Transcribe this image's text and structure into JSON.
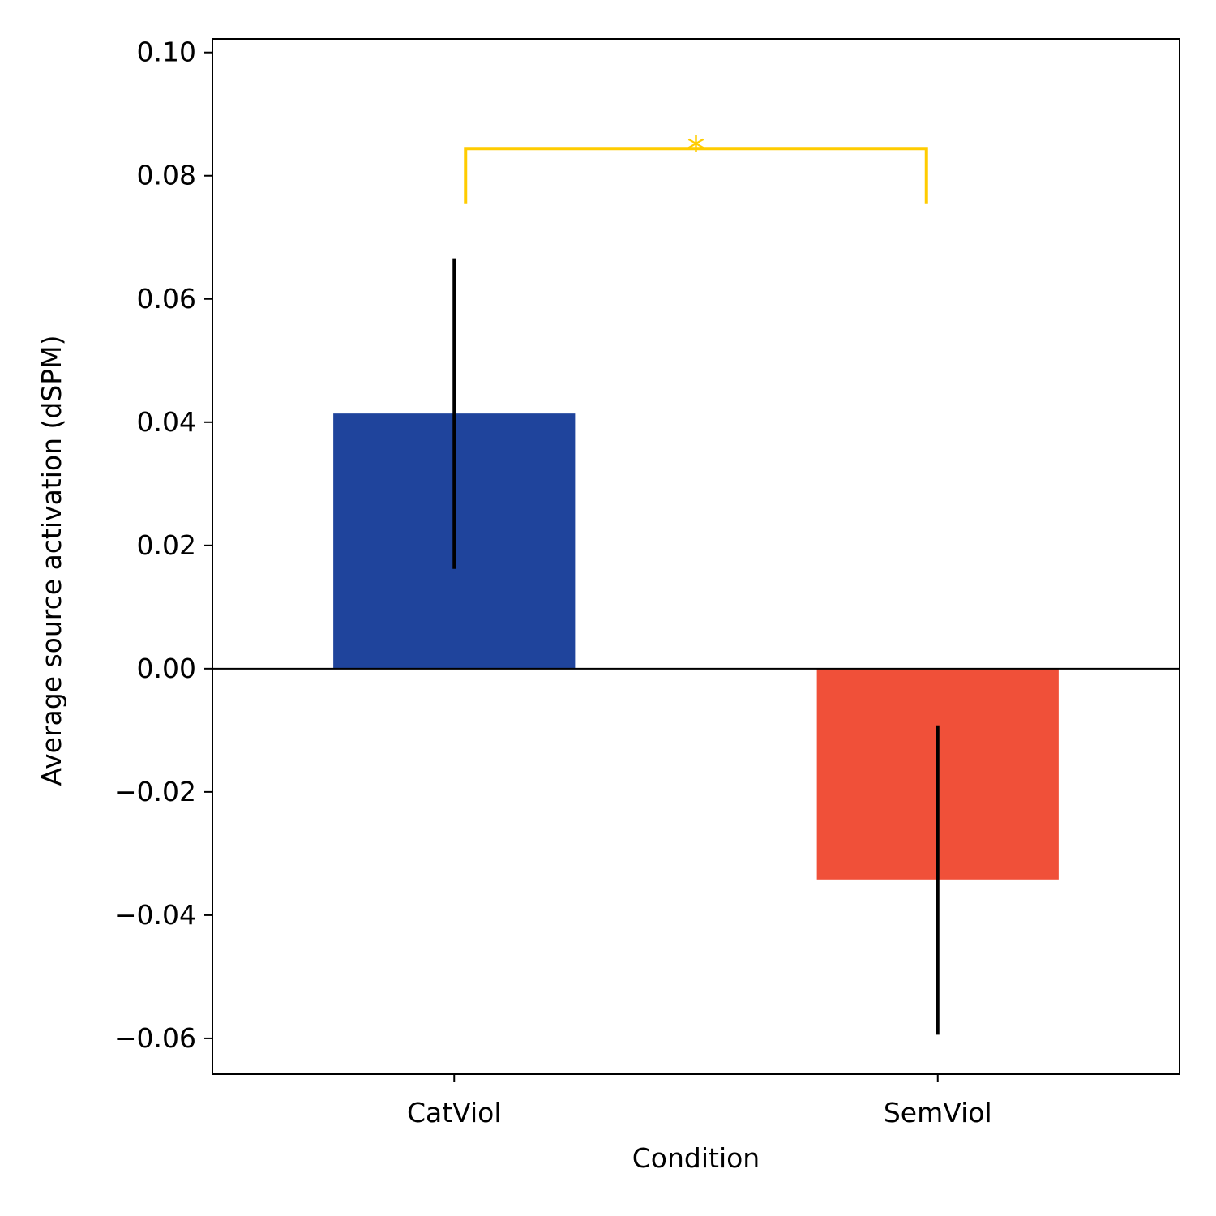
{
  "chart_data": {
    "type": "bar",
    "categories": [
      "CatViol",
      "SemViol"
    ],
    "values": [
      0.0414,
      -0.0342
    ],
    "error_bars": [
      {
        "low": 0.0162,
        "high": 0.0666
      },
      {
        "low": -0.0594,
        "high": -0.0092
      }
    ],
    "bar_colors": [
      "#1f449c",
      "#f05039"
    ],
    "xlabel": "Condition",
    "ylabel": "Average source activation (dSPM)",
    "ylim": [
      -0.0658,
      0.1022
    ],
    "yticks": [
      0.1,
      0.08,
      0.06,
      0.04,
      0.02,
      0.0,
      -0.02,
      -0.04,
      -0.06
    ],
    "ytick_labels": [
      "0.10",
      "0.08",
      "0.06",
      "0.04",
      "0.02",
      "0.00",
      "−0.02",
      "−0.04",
      "−0.06"
    ],
    "zero_line": true,
    "grid": false,
    "significance": {
      "from_category": 0,
      "to_category": 1,
      "label": "*",
      "bracket_top": 0.0844,
      "bracket_bottom": 0.0754,
      "color": "#ffcc00"
    }
  }
}
